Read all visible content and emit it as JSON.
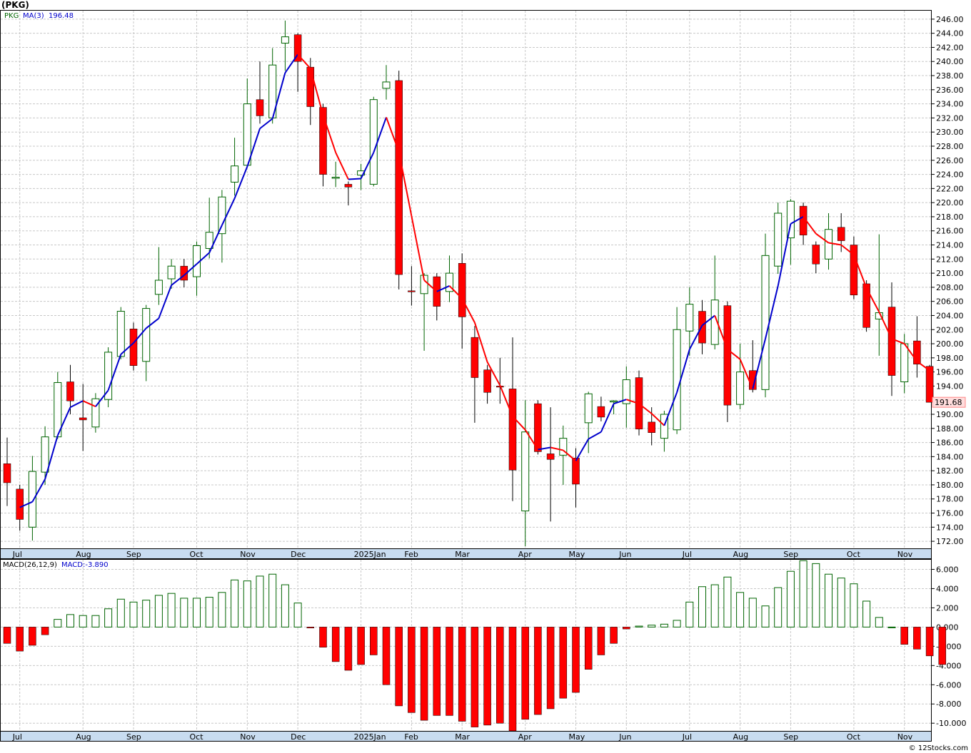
{
  "title": "(PKG)",
  "watermark": "© 12Stocks.com",
  "legend": {
    "symbol": "PKG",
    "ma_label": "MA(3)",
    "ma_value": "196.48",
    "macd_params": "MACD(26,12,9)",
    "macd_value": "MACD:-3.890"
  },
  "last_price_label": "191.68",
  "colors": {
    "up_candle": "#006400",
    "down_candle": "#ff0000",
    "ma_up": "#0000cc",
    "ma_down": "#ff0000",
    "grid": "#c8c8c8",
    "axis_bar": "#c8dcf0"
  },
  "chart_data": [
    {
      "type": "candlestick",
      "ylim": [
        171,
        247.2
      ],
      "y_ticks": [
        "172.00",
        "174.00",
        "176.00",
        "178.00",
        "180.00",
        "182.00",
        "184.00",
        "186.00",
        "188.00",
        "190.00",
        "192.00",
        "194.00",
        "196.00",
        "198.00",
        "200.00",
        "202.00",
        "204.00",
        "206.00",
        "208.00",
        "210.00",
        "212.00",
        "214.00",
        "216.00",
        "218.00",
        "220.00",
        "222.00",
        "224.00",
        "226.00",
        "228.00",
        "230.00",
        "232.00",
        "234.00",
        "236.00",
        "238.00",
        "240.00",
        "242.00",
        "244.00",
        "246.00"
      ],
      "month_labels": [
        {
          "label": "Jul",
          "index": 1
        },
        {
          "label": "Aug",
          "index": 6
        },
        {
          "label": "Sep",
          "index": 10
        },
        {
          "label": "Oct",
          "index": 15
        },
        {
          "label": "Nov",
          "index": 19
        },
        {
          "label": "Dec",
          "index": 23
        },
        {
          "label": "2025Jan",
          "index": 28
        },
        {
          "label": "Feb",
          "index": 32
        },
        {
          "label": "Mar",
          "index": 36
        },
        {
          "label": "Apr",
          "index": 41
        },
        {
          "label": "May",
          "index": 45
        },
        {
          "label": "Jun",
          "index": 49
        },
        {
          "label": "Jul",
          "index": 54
        },
        {
          "label": "Aug",
          "index": 58
        },
        {
          "label": "Sep",
          "index": 62
        },
        {
          "label": "Oct",
          "index": 67
        },
        {
          "label": "Nov",
          "index": 71
        }
      ],
      "candles": [
        {
          "o": 183.0,
          "h": 186.7,
          "l": 177.0,
          "c": 180.3
        },
        {
          "o": 179.4,
          "h": 180.0,
          "l": 173.5,
          "c": 175.1
        },
        {
          "o": 174.0,
          "h": 184.1,
          "l": 172.1,
          "c": 181.9
        },
        {
          "o": 181.8,
          "h": 188.3,
          "l": 180.0,
          "c": 186.8
        },
        {
          "o": 186.8,
          "h": 196.0,
          "l": 186.5,
          "c": 194.5
        },
        {
          "o": 194.6,
          "h": 197.0,
          "l": 190.0,
          "c": 191.9
        },
        {
          "o": 189.5,
          "h": 194.3,
          "l": 184.8,
          "c": 189.2
        },
        {
          "o": 188.2,
          "h": 193.0,
          "l": 187.4,
          "c": 192.2
        },
        {
          "o": 192.1,
          "h": 199.5,
          "l": 191.0,
          "c": 198.8
        },
        {
          "o": 198.2,
          "h": 205.2,
          "l": 197.8,
          "c": 204.6
        },
        {
          "o": 202.1,
          "h": 203.0,
          "l": 196.2,
          "c": 196.9
        },
        {
          "o": 197.5,
          "h": 205.5,
          "l": 194.7,
          "c": 205.0
        },
        {
          "o": 207.0,
          "h": 213.7,
          "l": 205.5,
          "c": 209.0
        },
        {
          "o": 209.2,
          "h": 212.0,
          "l": 207.8,
          "c": 211.0
        },
        {
          "o": 211.0,
          "h": 212.0,
          "l": 208.0,
          "c": 209.0
        },
        {
          "o": 209.5,
          "h": 214.5,
          "l": 206.8,
          "c": 213.9
        },
        {
          "o": 213.5,
          "h": 220.7,
          "l": 212.1,
          "c": 215.8
        },
        {
          "o": 215.6,
          "h": 221.8,
          "l": 211.5,
          "c": 220.8
        },
        {
          "o": 222.9,
          "h": 229.2,
          "l": 221.0,
          "c": 225.2
        },
        {
          "o": 225.3,
          "h": 237.6,
          "l": 225.0,
          "c": 234.0
        },
        {
          "o": 234.6,
          "h": 240.0,
          "l": 231.2,
          "c": 232.3
        },
        {
          "o": 232.0,
          "h": 241.9,
          "l": 231.2,
          "c": 239.5
        },
        {
          "o": 242.6,
          "h": 245.8,
          "l": 238.7,
          "c": 243.5
        },
        {
          "o": 243.8,
          "h": 244.0,
          "l": 235.7,
          "c": 240.0
        },
        {
          "o": 239.2,
          "h": 240.5,
          "l": 231.0,
          "c": 233.6
        },
        {
          "o": 233.5,
          "h": 234.0,
          "l": 222.3,
          "c": 224.0
        },
        {
          "o": 223.6,
          "h": 225.8,
          "l": 222.2,
          "c": 223.6
        },
        {
          "o": 222.6,
          "h": 223.0,
          "l": 219.6,
          "c": 222.2
        },
        {
          "o": 223.9,
          "h": 225.5,
          "l": 221.8,
          "c": 224.5
        },
        {
          "o": 222.6,
          "h": 235.0,
          "l": 222.3,
          "c": 234.6
        },
        {
          "o": 236.2,
          "h": 239.5,
          "l": 234.6,
          "c": 237.1
        },
        {
          "o": 237.3,
          "h": 238.7,
          "l": 207.7,
          "c": 209.8
        },
        {
          "o": 207.5,
          "h": 211.0,
          "l": 205.4,
          "c": 207.4
        },
        {
          "o": 207.1,
          "h": 210.0,
          "l": 199.0,
          "c": 209.7
        },
        {
          "o": 209.5,
          "h": 210.0,
          "l": 203.3,
          "c": 205.3
        },
        {
          "o": 207.4,
          "h": 212.5,
          "l": 205.9,
          "c": 210.0
        },
        {
          "o": 211.4,
          "h": 212.8,
          "l": 199.3,
          "c": 203.8
        },
        {
          "o": 200.9,
          "h": 202.5,
          "l": 188.8,
          "c": 195.2
        },
        {
          "o": 196.3,
          "h": 197.0,
          "l": 191.5,
          "c": 193.1
        },
        {
          "o": 194.0,
          "h": 198.0,
          "l": 191.5,
          "c": 193.9
        },
        {
          "o": 193.6,
          "h": 200.9,
          "l": 177.7,
          "c": 182.1
        },
        {
          "o": 176.3,
          "h": 192.0,
          "l": 171.3,
          "c": 187.5
        },
        {
          "o": 191.5,
          "h": 192.0,
          "l": 184.3,
          "c": 184.7
        },
        {
          "o": 184.4,
          "h": 191.0,
          "l": 174.8,
          "c": 183.6
        },
        {
          "o": 184.2,
          "h": 188.4,
          "l": 180.0,
          "c": 186.6
        },
        {
          "o": 183.8,
          "h": 185.2,
          "l": 176.8,
          "c": 180.1
        },
        {
          "o": 188.8,
          "h": 193.2,
          "l": 184.5,
          "c": 192.9
        },
        {
          "o": 191.1,
          "h": 192.5,
          "l": 189.0,
          "c": 189.6
        },
        {
          "o": 191.9,
          "h": 192.0,
          "l": 190.0,
          "c": 191.9
        },
        {
          "o": 191.5,
          "h": 196.8,
          "l": 188.1,
          "c": 194.9
        },
        {
          "o": 195.2,
          "h": 196.2,
          "l": 187.0,
          "c": 187.9
        },
        {
          "o": 188.9,
          "h": 191.0,
          "l": 185.6,
          "c": 187.4
        },
        {
          "o": 186.6,
          "h": 190.5,
          "l": 184.7,
          "c": 190.0
        },
        {
          "o": 187.8,
          "h": 205.2,
          "l": 187.2,
          "c": 202.0
        },
        {
          "o": 201.8,
          "h": 208.0,
          "l": 198.3,
          "c": 205.6
        },
        {
          "o": 204.6,
          "h": 206.2,
          "l": 198.5,
          "c": 200.1
        },
        {
          "o": 199.9,
          "h": 212.5,
          "l": 199.2,
          "c": 206.2
        },
        {
          "o": 205.4,
          "h": 206.0,
          "l": 188.9,
          "c": 191.3
        },
        {
          "o": 191.4,
          "h": 200.0,
          "l": 190.7,
          "c": 196.0
        },
        {
          "o": 196.2,
          "h": 200.5,
          "l": 193.1,
          "c": 193.5
        },
        {
          "o": 193.5,
          "h": 215.6,
          "l": 192.4,
          "c": 212.5
        },
        {
          "o": 211.0,
          "h": 220.0,
          "l": 209.9,
          "c": 218.5
        },
        {
          "o": 215.0,
          "h": 220.5,
          "l": 211.2,
          "c": 220.2
        },
        {
          "o": 219.5,
          "h": 220.0,
          "l": 214.0,
          "c": 215.4
        },
        {
          "o": 214.0,
          "h": 214.5,
          "l": 210.0,
          "c": 211.3
        },
        {
          "o": 212.0,
          "h": 218.5,
          "l": 210.5,
          "c": 216.2
        },
        {
          "o": 216.5,
          "h": 218.5,
          "l": 213.0,
          "c": 214.6
        },
        {
          "o": 214.0,
          "h": 215.2,
          "l": 206.3,
          "c": 206.9
        },
        {
          "o": 208.5,
          "h": 209.0,
          "l": 201.7,
          "c": 202.3
        },
        {
          "o": 203.5,
          "h": 215.5,
          "l": 198.3,
          "c": 204.4
        },
        {
          "o": 205.2,
          "h": 208.7,
          "l": 192.6,
          "c": 195.5
        },
        {
          "o": 194.6,
          "h": 201.4,
          "l": 193.0,
          "c": 200.0
        },
        {
          "o": 200.4,
          "h": 203.9,
          "l": 195.2,
          "c": 197.1
        },
        {
          "o": 196.8,
          "h": 197.0,
          "l": 191.7,
          "c": 191.7
        }
      ],
      "ma3": [
        null,
        176.8,
        177.6,
        180.8,
        187.0,
        191.0,
        191.9,
        191.1,
        193.4,
        198.5,
        200.1,
        202.2,
        203.6,
        208.3,
        209.7,
        211.3,
        212.9,
        216.8,
        220.6,
        225.1,
        230.5,
        231.9,
        238.4,
        241.0,
        239.0,
        232.4,
        227.1,
        223.3,
        223.4,
        227.1,
        232.1,
        227.2,
        218.1,
        209.0,
        207.4,
        208.2,
        206.4,
        203.0,
        197.4,
        194.1,
        189.7,
        187.8,
        185.0,
        185.3,
        184.9,
        183.4,
        186.5,
        187.5,
        191.5,
        192.1,
        191.5,
        190.1,
        188.4,
        193.1,
        199.2,
        202.6,
        204.0,
        199.2,
        197.8,
        193.6,
        200.7,
        208.2,
        217.0,
        218.0,
        215.6,
        214.3,
        214.0,
        212.6,
        207.9,
        204.5,
        200.7,
        200.0,
        197.5,
        196.2
      ]
    },
    {
      "type": "bar",
      "name": "MACD(26,12,9)",
      "ylim": [
        -10.8,
        7.0
      ],
      "y_ticks": [
        "6.000",
        "4.000",
        "2.000",
        "0.000",
        "-2.000",
        "-4.000",
        "-6.000",
        "-8.000",
        "-10.000"
      ],
      "values": [
        -1.7,
        -2.5,
        -1.9,
        -0.8,
        0.8,
        1.3,
        1.2,
        1.2,
        1.9,
        2.9,
        2.6,
        2.8,
        3.3,
        3.5,
        3.0,
        3.0,
        3.1,
        3.6,
        4.9,
        4.8,
        5.3,
        5.5,
        4.4,
        2.5,
        -0.1,
        -2.1,
        -3.6,
        -4.5,
        -3.9,
        -2.9,
        -6.0,
        -8.2,
        -8.9,
        -9.7,
        -9.2,
        -9.2,
        -9.8,
        -10.4,
        -10.2,
        -10.0,
        -10.8,
        -9.6,
        -9.1,
        -8.5,
        -7.4,
        -6.8,
        -4.4,
        -2.9,
        -1.7,
        -0.2,
        0.1,
        0.2,
        0.3,
        0.7,
        2.6,
        4.2,
        4.4,
        5.2,
        3.6,
        3.0,
        2.2,
        4.1,
        5.8,
        6.9,
        6.6,
        5.5,
        5.1,
        4.5,
        2.7,
        1.0,
        0.0,
        -1.8,
        -2.3,
        -3.0,
        -3.9
      ]
    }
  ]
}
